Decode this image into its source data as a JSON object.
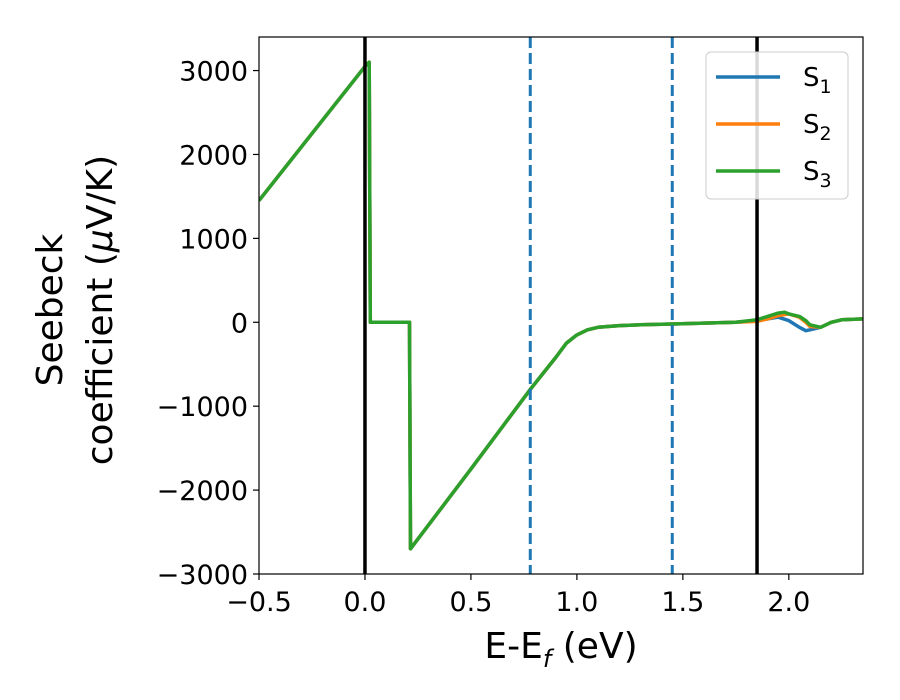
{
  "chart_data": {
    "type": "line",
    "title": "",
    "xlabel": "E-E",
    "xlabel_sub": "f",
    "xlabel_unit": " (eV)",
    "ylabel_line1": "Seebeck",
    "ylabel_line2": "coefficient  (",
    "ylabel_mu": "μ",
    "ylabel_unit": "V/K)",
    "xlim": [
      -0.5,
      2.35
    ],
    "ylim": [
      -3000,
      3400
    ],
    "xticks": [
      -0.5,
      0.0,
      0.5,
      1.0,
      1.5,
      2.0
    ],
    "xtick_labels": [
      "−0.5",
      "0.0",
      "0.5",
      "1.0",
      "1.5",
      "2.0"
    ],
    "yticks": [
      -3000,
      -2000,
      -1000,
      0,
      1000,
      2000,
      3000
    ],
    "ytick_labels": [
      "−3000",
      "−2000",
      "−1000",
      "0",
      "1000",
      "2000",
      "3000"
    ],
    "grid": false,
    "legend_position": "top-right",
    "vlines": [
      {
        "x": 0.0,
        "color": "#000000",
        "style": "solid"
      },
      {
        "x": 1.85,
        "color": "#000000",
        "style": "solid"
      },
      {
        "x": 0.78,
        "color": "#1f77b4",
        "style": "dashed"
      },
      {
        "x": 1.45,
        "color": "#1f77b4",
        "style": "dashed"
      }
    ],
    "series": [
      {
        "name": "S",
        "sub": "1",
        "color": "#1f77b4",
        "x": [
          -0.5,
          0.0,
          0.02,
          0.025,
          0.21,
          0.215,
          0.5,
          0.78,
          0.9,
          0.95,
          1.0,
          1.05,
          1.1,
          1.2,
          1.3,
          1.45,
          1.6,
          1.75,
          1.85,
          1.9,
          1.95,
          2.0,
          2.05,
          2.08,
          2.1,
          2.15,
          2.2,
          2.25,
          2.35
        ],
        "y": [
          1450,
          3050,
          3100,
          0,
          0,
          -2700,
          -1750,
          -800,
          -420,
          -250,
          -150,
          -90,
          -60,
          -40,
          -30,
          -20,
          -10,
          0,
          20,
          40,
          60,
          20,
          -60,
          -100,
          -90,
          -60,
          0,
          30,
          40
        ]
      },
      {
        "name": "S",
        "sub": "2",
        "color": "#ff7f0e",
        "x": [
          -0.5,
          0.0,
          0.02,
          0.025,
          0.21,
          0.215,
          0.5,
          0.78,
          0.9,
          0.95,
          1.0,
          1.05,
          1.1,
          1.2,
          1.3,
          1.45,
          1.6,
          1.75,
          1.85,
          1.9,
          1.95,
          2.0,
          2.05,
          2.08,
          2.1,
          2.15,
          2.2,
          2.25,
          2.35
        ],
        "y": [
          1450,
          3050,
          3100,
          0,
          0,
          -2700,
          -1750,
          -800,
          -420,
          -250,
          -150,
          -90,
          -60,
          -40,
          -30,
          -20,
          -10,
          0,
          10,
          40,
          80,
          100,
          60,
          0,
          -50,
          -60,
          0,
          30,
          40
        ]
      },
      {
        "name": "S",
        "sub": "3",
        "color": "#2ca02c",
        "x": [
          -0.5,
          0.0,
          0.02,
          0.025,
          0.21,
          0.215,
          0.5,
          0.78,
          0.9,
          0.95,
          1.0,
          1.05,
          1.1,
          1.2,
          1.3,
          1.45,
          1.6,
          1.75,
          1.85,
          1.9,
          1.95,
          1.98,
          2.0,
          2.05,
          2.08,
          2.1,
          2.15,
          2.2,
          2.25,
          2.35
        ],
        "y": [
          1450,
          3050,
          3100,
          0,
          0,
          -2700,
          -1750,
          -800,
          -420,
          -250,
          -150,
          -90,
          -60,
          -40,
          -30,
          -20,
          -10,
          0,
          30,
          70,
          110,
          120,
          100,
          70,
          20,
          -30,
          -60,
          0,
          30,
          40
        ]
      }
    ]
  }
}
